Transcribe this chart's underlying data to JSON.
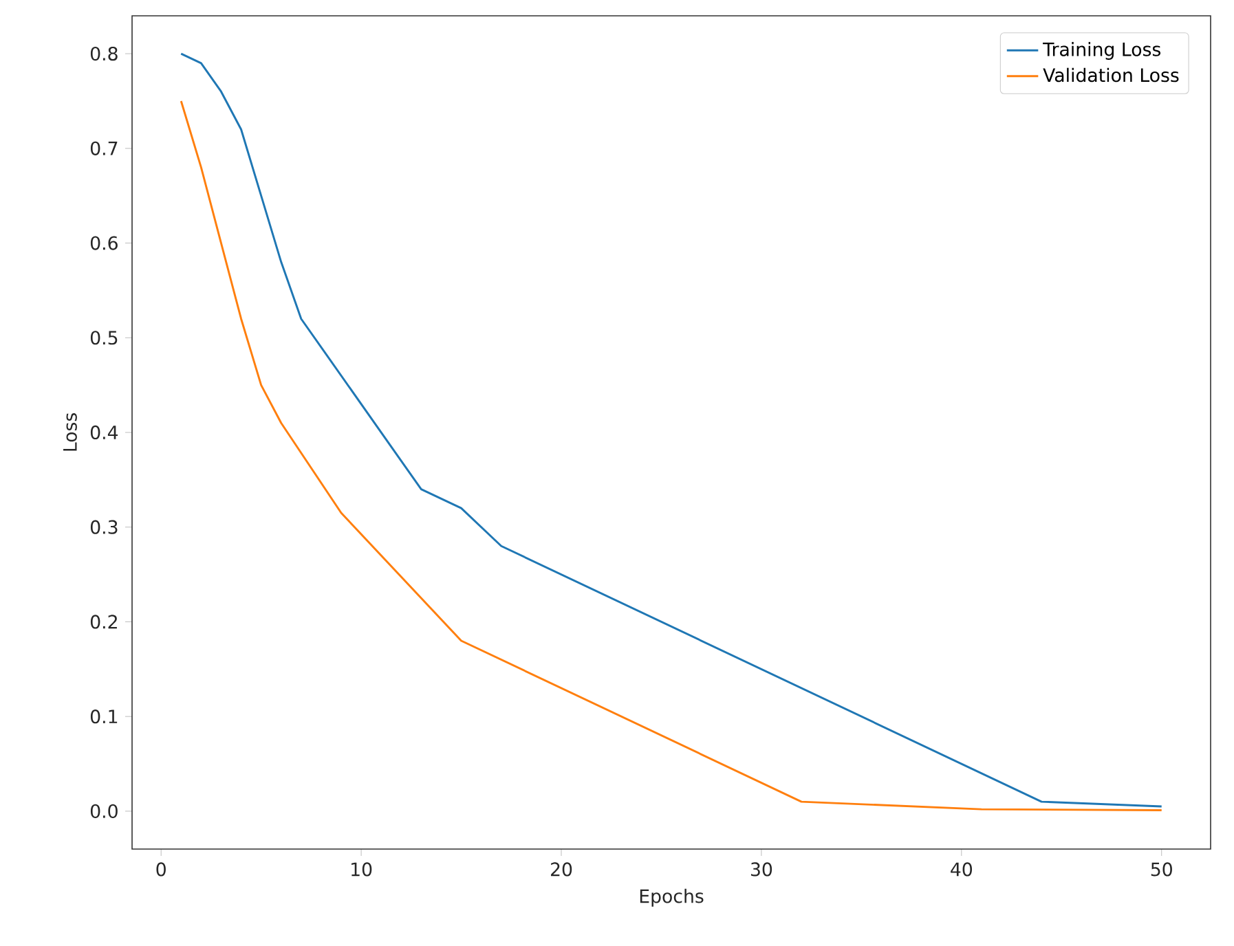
{
  "chart_data": {
    "type": "line",
    "xlabel": "Epochs",
    "ylabel": "Loss",
    "xlim": [
      -1.45,
      52.45
    ],
    "ylim": [
      -0.04,
      0.84
    ],
    "xticks": [
      0,
      10,
      20,
      30,
      40,
      50
    ],
    "yticks": [
      {
        "value": 0,
        "label": "0.0"
      },
      {
        "value": 0.1,
        "label": "0.1"
      },
      {
        "value": 0.2,
        "label": "0.2"
      },
      {
        "value": 0.3,
        "label": "0.3"
      },
      {
        "value": 0.4,
        "label": "0.4"
      },
      {
        "value": 0.5,
        "label": "0.5"
      },
      {
        "value": 0.6,
        "label": "0.6"
      },
      {
        "value": 0.7,
        "label": "0.7"
      },
      {
        "value": 0.8,
        "label": "0.8"
      }
    ],
    "legend": "top right",
    "grid": false,
    "marker": "none",
    "line_style": "solid",
    "series": [
      {
        "name": "Training Loss",
        "color": "#1f77b4",
        "x": [
          1,
          2,
          3,
          4,
          5,
          6,
          7,
          12,
          13,
          15,
          17,
          44,
          50
        ],
        "values": [
          0.8,
          0.79,
          0.76,
          0.72,
          0.65,
          0.58,
          0.52,
          0.37,
          0.34,
          0.32,
          0.28,
          0.01,
          0.005
        ]
      },
      {
        "name": "Validation Loss",
        "color": "#ff7f0e",
        "x": [
          1,
          2,
          3,
          4,
          5,
          6,
          9,
          15,
          32,
          41,
          50
        ],
        "values": [
          0.75,
          0.68,
          0.6,
          0.52,
          0.45,
          0.41,
          0.315,
          0.18,
          0.01,
          0.002,
          0.001
        ]
      }
    ]
  }
}
